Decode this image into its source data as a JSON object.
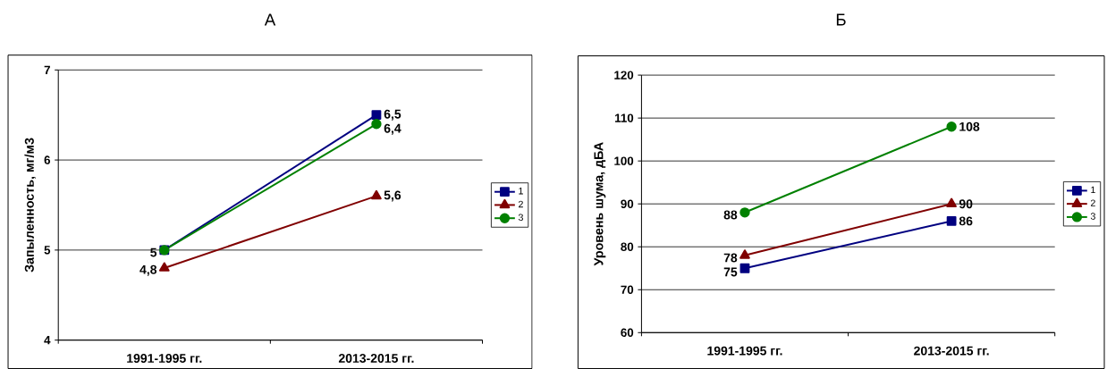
{
  "chart_data": [
    {
      "type": "line",
      "title": "А",
      "ylabel": "Запыленность, мг/м3",
      "categories": [
        "1991-1995 гг.",
        "2013-2015 гг."
      ],
      "series": [
        {
          "name": "1",
          "color": "#000080",
          "marker": "square",
          "values": [
            5,
            6.5
          ],
          "value_labels": [
            "5",
            "6,5"
          ]
        },
        {
          "name": "2",
          "color": "#800000",
          "marker": "triangle",
          "values": [
            4.8,
            5.6
          ],
          "value_labels": [
            "4,8",
            "5,6"
          ]
        },
        {
          "name": "3",
          "color": "#008000",
          "marker": "circle",
          "values": [
            5,
            6.4
          ],
          "value_labels": [
            null,
            "6,4"
          ]
        }
      ],
      "ylim": [
        4,
        7
      ],
      "yticks": [
        4,
        5,
        6,
        7
      ],
      "grid": "y",
      "legend": "right"
    },
    {
      "type": "line",
      "title": "Б",
      "ylabel": "Уровень шума, дБА",
      "categories": [
        "1991-1995 гг.",
        "2013-2015 гг."
      ],
      "series": [
        {
          "name": "1",
          "color": "#000080",
          "marker": "square",
          "values": [
            75,
            86
          ],
          "value_labels": [
            "75",
            "86"
          ]
        },
        {
          "name": "2",
          "color": "#800000",
          "marker": "triangle",
          "values": [
            78,
            90
          ],
          "value_labels": [
            "78",
            "90"
          ]
        },
        {
          "name": "3",
          "color": "#008000",
          "marker": "circle",
          "values": [
            88,
            108
          ],
          "value_labels": [
            "88",
            "108"
          ]
        }
      ],
      "ylim": [
        60,
        120
      ],
      "yticks": [
        60,
        70,
        80,
        90,
        100,
        110,
        120
      ],
      "grid": "y",
      "legend": "right"
    }
  ]
}
